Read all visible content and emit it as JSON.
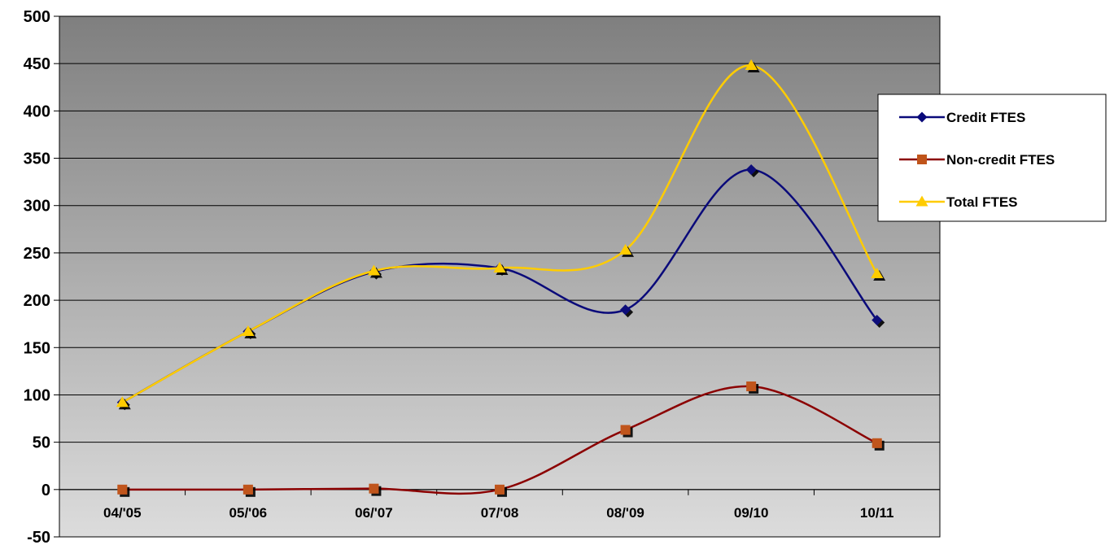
{
  "chart_data": {
    "type": "line",
    "categories": [
      "04/'05",
      "05/'06",
      "06/'07",
      "07/'08",
      "08/'09",
      "09/10",
      "10/11"
    ],
    "series": [
      {
        "name": "Credit FTES",
        "values": [
          92,
          167,
          230,
          234,
          190,
          338,
          179
        ],
        "color": "#0a0a7a",
        "marker": "diamond"
      },
      {
        "name": "Non-credit FTES",
        "values": [
          0,
          0,
          1,
          0,
          63,
          109,
          49
        ],
        "color": "#8b0000",
        "marker": "square",
        "marker_color": "#c0541a"
      },
      {
        "name": "Total FTES",
        "values": [
          92,
          167,
          231,
          234,
          253,
          448,
          228
        ],
        "color": "#ffcc00",
        "marker": "triangle"
      }
    ],
    "y_ticks": [
      "500",
      "450",
      "400",
      "350",
      "300",
      "250",
      "200",
      "150",
      "100",
      "50",
      "0",
      "-50"
    ],
    "ylim": [
      -50,
      500
    ],
    "grid": true,
    "legend_position": "right",
    "plot_background": "gradient-gray"
  }
}
